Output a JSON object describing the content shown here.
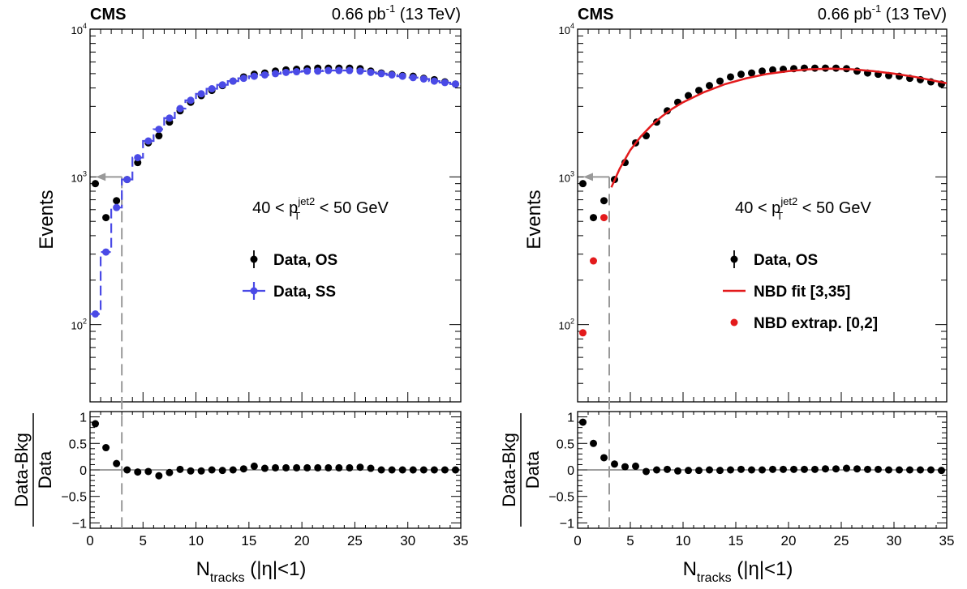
{
  "chart_data": [
    {
      "type": "scatter",
      "panel": "left",
      "experiment": "CMS",
      "lumi_label": "0.66 pb",
      "lumi_exponent": "-1",
      "energy_label": "(13 TeV)",
      "xlabel_main": "N",
      "xlabel_sub": "tracks",
      "xlabel_tail": "(|η|<1)",
      "ylabel": "Events",
      "ratio_ylabel_num": "Data-Bkg",
      "ratio_ylabel_den": "Data",
      "y_scale": "log",
      "xlim": [
        0,
        35
      ],
      "ylim": [
        30,
        10000
      ],
      "ratio_ylim": [
        -1.1,
        1.1
      ],
      "x_ticks": [
        "0",
        "5",
        "10",
        "15",
        "20",
        "25",
        "30",
        "35"
      ],
      "y_tick_base": "10",
      "y_tick_exponents": [
        "2",
        "3",
        "4"
      ],
      "ratio_ticks": [
        "1",
        "0.5",
        "0",
        "−0.5",
        "−1"
      ],
      "cut_x": 3,
      "selection_pre": "40 < p",
      "selection_sup": "jet2",
      "selection_sub": "T",
      "selection_post": "< 50 GeV",
      "legend_position": "right-middle",
      "colors": {
        "os": "#000000",
        "ss": "#4a4ae6",
        "cut": "#999999"
      },
      "series": [
        {
          "name": "Data, OS",
          "style": "markers",
          "x": [
            0.5,
            1.5,
            2.5,
            3.5,
            4.5,
            5.5,
            6.5,
            7.5,
            8.5,
            9.5,
            10.5,
            11.5,
            12.5,
            13.5,
            14.5,
            15.5,
            16.5,
            17.5,
            18.5,
            19.5,
            20.5,
            21.5,
            22.5,
            23.5,
            24.5,
            25.5,
            26.5,
            27.5,
            28.5,
            29.5,
            30.5,
            31.5,
            32.5,
            33.5,
            34.5
          ],
          "y": [
            900,
            530,
            690,
            960,
            1250,
            1700,
            1900,
            2350,
            2800,
            3200,
            3550,
            3850,
            4150,
            4450,
            4750,
            4950,
            5050,
            5200,
            5300,
            5350,
            5400,
            5450,
            5450,
            5450,
            5450,
            5400,
            5200,
            5050,
            4950,
            4850,
            4800,
            4650,
            4550,
            4400,
            4250
          ]
        },
        {
          "name": "Data, SS",
          "style": "step",
          "x": [
            0.5,
            1.5,
            2.5,
            3.5,
            4.5,
            5.5,
            6.5,
            7.5,
            8.5,
            9.5,
            10.5,
            11.5,
            12.5,
            13.5,
            14.5,
            15.5,
            16.5,
            17.5,
            18.5,
            19.5,
            20.5,
            21.5,
            22.5,
            23.5,
            24.5,
            25.5,
            26.5,
            27.5,
            28.5,
            29.5,
            30.5,
            31.5,
            32.5,
            33.5,
            34.5
          ],
          "y": [
            118,
            310,
            620,
            960,
            1350,
            1750,
            2100,
            2500,
            2900,
            3300,
            3650,
            3950,
            4200,
            4450,
            4650,
            4800,
            4900,
            5000,
            5100,
            5150,
            5200,
            5200,
            5250,
            5250,
            5250,
            5200,
            5100,
            5000,
            4900,
            4800,
            4700,
            4600,
            4450,
            4350,
            4250
          ]
        }
      ],
      "ratio": {
        "x": [
          0.5,
          1.5,
          2.5,
          3.5,
          4.5,
          5.5,
          6.5,
          7.5,
          8.5,
          9.5,
          10.5,
          11.5,
          12.5,
          13.5,
          14.5,
          15.5,
          16.5,
          17.5,
          18.5,
          19.5,
          20.5,
          21.5,
          22.5,
          23.5,
          24.5,
          25.5,
          26.5,
          27.5,
          28.5,
          29.5,
          30.5,
          31.5,
          32.5,
          33.5,
          34.5
        ],
        "y": [
          0.87,
          0.42,
          0.12,
          0.0,
          -0.04,
          -0.03,
          -0.11,
          -0.05,
          0.01,
          -0.02,
          -0.02,
          0.0,
          -0.01,
          0.0,
          0.02,
          0.07,
          0.03,
          0.04,
          0.04,
          0.04,
          0.04,
          0.04,
          0.04,
          0.04,
          0.04,
          0.05,
          0.03,
          0.0,
          0.0,
          0.0,
          0.0,
          0.0,
          0.0,
          0.0,
          0.0
        ]
      }
    },
    {
      "type": "scatter",
      "panel": "right",
      "experiment": "CMS",
      "lumi_label": "0.66 pb",
      "lumi_exponent": "-1",
      "energy_label": "(13 TeV)",
      "xlabel_main": "N",
      "xlabel_sub": "tracks",
      "xlabel_tail": "(|η|<1)",
      "ylabel": "Events",
      "ratio_ylabel_num": "Data-Bkg",
      "ratio_ylabel_den": "Data",
      "y_scale": "log",
      "xlim": [
        0,
        35
      ],
      "ylim": [
        30,
        10000
      ],
      "ratio_ylim": [
        -1.1,
        1.1
      ],
      "x_ticks": [
        "0",
        "5",
        "10",
        "15",
        "20",
        "25",
        "30",
        "35"
      ],
      "y_tick_base": "10",
      "y_tick_exponents": [
        "2",
        "3",
        "4"
      ],
      "ratio_ticks": [
        "1",
        "0.5",
        "0",
        "−0.5",
        "−1"
      ],
      "cut_x": 3,
      "selection_pre": "40 < p",
      "selection_sup": "jet2",
      "selection_sub": "T",
      "selection_post": "< 50 GeV",
      "legend_position": "right-middle",
      "colors": {
        "os": "#000000",
        "fit": "#e31a1c",
        "extrap": "#e31a1c",
        "cut": "#999999"
      },
      "series": [
        {
          "name": "Data, OS",
          "style": "markers",
          "x": [
            0.5,
            1.5,
            2.5,
            3.5,
            4.5,
            5.5,
            6.5,
            7.5,
            8.5,
            9.5,
            10.5,
            11.5,
            12.5,
            13.5,
            14.5,
            15.5,
            16.5,
            17.5,
            18.5,
            19.5,
            20.5,
            21.5,
            22.5,
            23.5,
            24.5,
            25.5,
            26.5,
            27.5,
            28.5,
            29.5,
            30.5,
            31.5,
            32.5,
            33.5,
            34.5
          ],
          "y": [
            900,
            530,
            690,
            960,
            1250,
            1700,
            1900,
            2350,
            2800,
            3200,
            3550,
            3850,
            4150,
            4450,
            4750,
            4950,
            5050,
            5200,
            5300,
            5350,
            5400,
            5450,
            5450,
            5450,
            5450,
            5400,
            5200,
            5050,
            4950,
            4850,
            4800,
            4650,
            4550,
            4400,
            4250
          ]
        },
        {
          "name": "NBD fit [3,35]",
          "style": "line",
          "x": [
            3.2,
            4,
            5,
            6,
            7,
            8,
            9,
            10,
            12,
            14,
            16,
            18,
            20,
            22,
            24,
            26,
            28,
            30,
            32,
            34,
            35
          ],
          "y": [
            850,
            1140,
            1520,
            1880,
            2230,
            2570,
            2900,
            3200,
            3750,
            4250,
            4650,
            4980,
            5200,
            5350,
            5400,
            5350,
            5200,
            5000,
            4750,
            4450,
            4300
          ]
        },
        {
          "name": "NBD extrap. [0,2]",
          "style": "markers",
          "x": [
            0.5,
            1.5,
            2.5
          ],
          "y": [
            88,
            270,
            530
          ]
        }
      ],
      "ratio": {
        "x": [
          0.5,
          1.5,
          2.5,
          3.5,
          4.5,
          5.5,
          6.5,
          7.5,
          8.5,
          9.5,
          10.5,
          11.5,
          12.5,
          13.5,
          14.5,
          15.5,
          16.5,
          17.5,
          18.5,
          19.5,
          20.5,
          21.5,
          22.5,
          23.5,
          24.5,
          25.5,
          26.5,
          27.5,
          28.5,
          29.5,
          30.5,
          31.5,
          32.5,
          33.5,
          34.5
        ],
        "y": [
          0.9,
          0.5,
          0.23,
          0.11,
          0.06,
          0.07,
          -0.03,
          0.0,
          0.01,
          -0.02,
          -0.01,
          -0.01,
          0.0,
          -0.01,
          0.0,
          0.01,
          0.0,
          0.0,
          0.01,
          0.01,
          0.01,
          0.01,
          0.01,
          0.02,
          0.02,
          0.03,
          0.02,
          0.01,
          0.01,
          0.0,
          0.0,
          0.0,
          0.0,
          0.0,
          -0.01
        ]
      }
    }
  ]
}
